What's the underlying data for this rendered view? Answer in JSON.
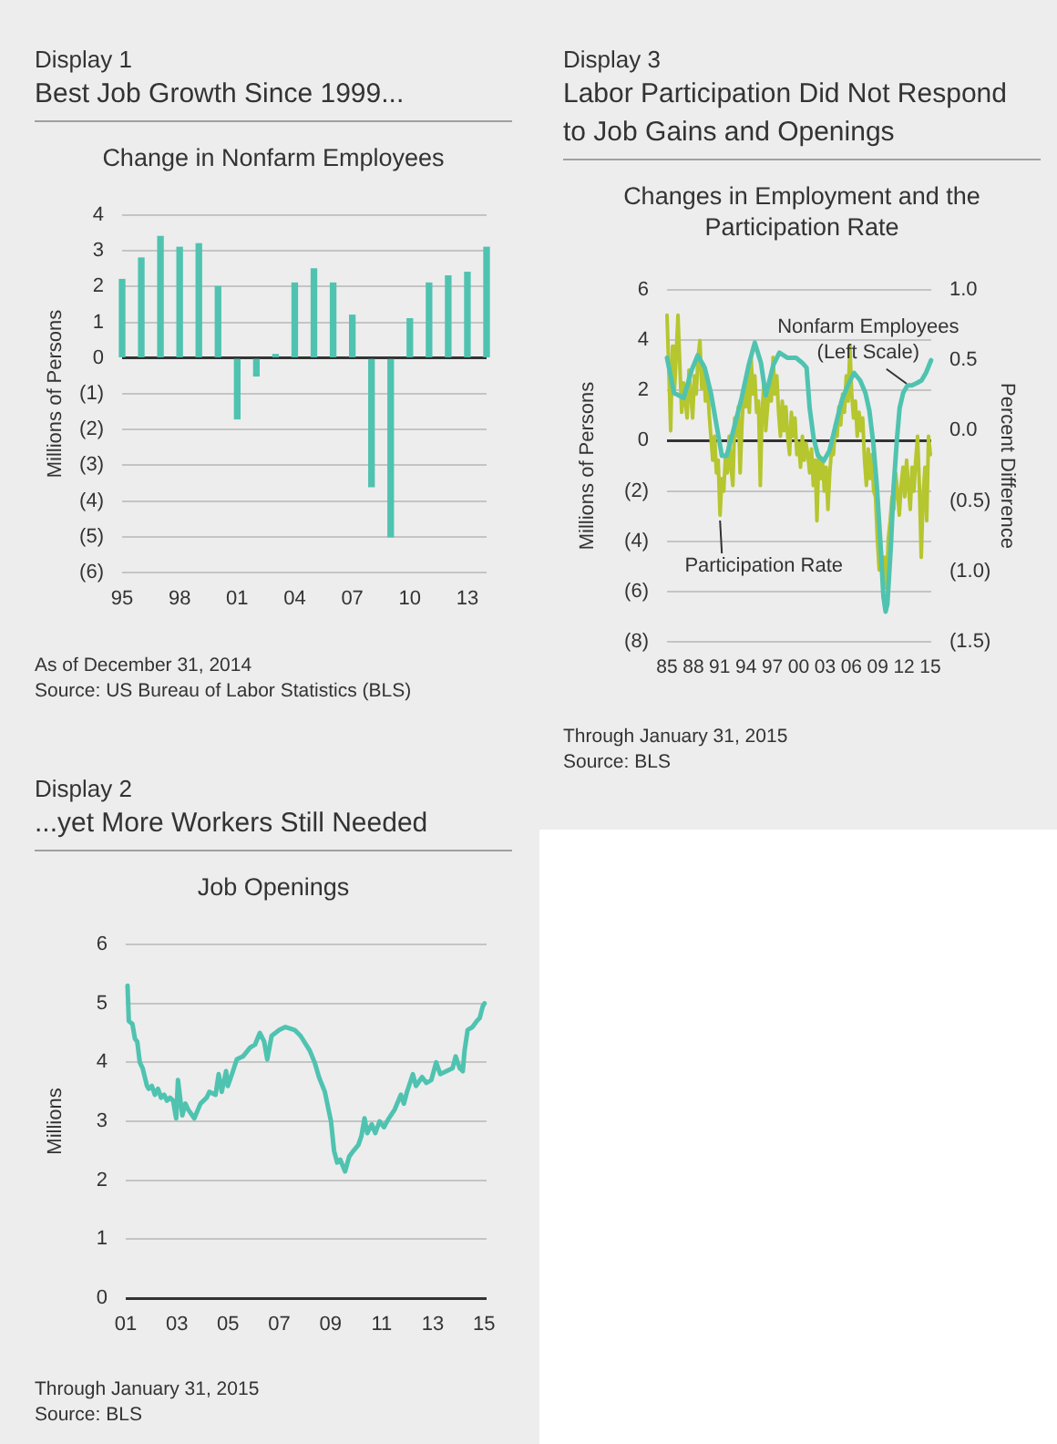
{
  "chart_data": [
    {
      "type": "bar",
      "title": "Best Job Growth Since 1999...",
      "subtitle": "Change in Nonfarm Employees",
      "ylabel": "Millions of Persons",
      "annotations": [
        "Display 1",
        "As of December 31, 2014",
        "Source: US Bureau of Labor Statistics (BLS)"
      ],
      "categories": [
        "95",
        null,
        null,
        "98",
        null,
        null,
        "01",
        null,
        null,
        "04",
        null,
        null,
        "07",
        null,
        null,
        "10",
        null,
        null,
        "13",
        null
      ],
      "values": [
        2.2,
        2.8,
        3.4,
        3.1,
        3.2,
        2.0,
        -1.7,
        -0.5,
        0.1,
        2.1,
        2.5,
        2.1,
        1.2,
        -3.6,
        -5.0,
        1.1,
        2.1,
        2.3,
        2.4,
        3.1
      ],
      "color": "#4fc3b0",
      "ylim": [
        -6,
        4
      ],
      "yticks": [
        {
          "value": -6,
          "label": "(6)"
        },
        {
          "value": -5,
          "label": "(5)"
        },
        {
          "value": -4,
          "label": "(4)"
        },
        {
          "value": -3,
          "label": "(3)"
        },
        {
          "value": -2,
          "label": "(2)"
        },
        {
          "value": -1,
          "label": "(1)"
        },
        0,
        1,
        2,
        3,
        4
      ],
      "grid": "y"
    },
    {
      "type": "line",
      "title": "Labor Participation Did Not Respond to Job Gains and Openings",
      "subtitle": "Changes in Employment and the Participation Rate",
      "ylabel": "Millions of Persons",
      "y2label": "Percent Difference",
      "annotations": [
        "Display 3",
        "Through January 31, 2015",
        "Source: BLS"
      ],
      "series": [
        {
          "name": "Nonfarm Employees (Left Scale)",
          "color": "#4fc3b0",
          "x": [
            1985,
            1985.8,
            1986.9,
            1987.8,
            1988.5,
            1989.3,
            1990,
            1990.7,
            1991.25,
            1991.8,
            1992.4,
            1993.5,
            1994.3,
            1995,
            1995.7,
            1996.25,
            1997.1,
            1997.8,
            1998.7,
            1999.7,
            2000.4,
            2000.9,
            2001.25,
            2001.7,
            2002.2,
            2002.85,
            2003.5,
            2004.2,
            2004.9,
            2005.6,
            2006.3,
            2007,
            2007.6,
            2008.05,
            2008.5,
            2008.9,
            2009.3,
            2009.65,
            2009.9,
            2010.1,
            2010.5,
            2010.8,
            2011.2,
            2011.5,
            2011.9,
            2012.4,
            2012.9,
            2013.5,
            2014,
            2014.5,
            2015.08
          ],
          "values": [
            3.3,
            1.9,
            1.7,
            2.8,
            3.4,
            2.9,
            1.9,
            0.5,
            -0.6,
            -0.6,
            0.2,
            1.7,
            3.0,
            3.9,
            3.1,
            1.8,
            3.0,
            3.5,
            3.3,
            3.3,
            3.1,
            2.9,
            1.3,
            0.1,
            -0.6,
            -0.8,
            -0.4,
            0.6,
            1.6,
            2.2,
            2.7,
            2.4,
            1.9,
            1.2,
            -0.1,
            -1.8,
            -4.0,
            -6.2,
            -6.8,
            -6.5,
            -4.2,
            -1.9,
            0.1,
            1.3,
            1.9,
            2.2,
            2.2,
            2.3,
            2.4,
            2.7,
            3.2
          ]
        },
        {
          "name": "Participation Rate",
          "color": "#b5c62f",
          "axis": "y2",
          "x": [
            1985,
            1985.21,
            1985.42,
            1985.63,
            1985.83,
            1986.04,
            1986.25,
            1986.46,
            1986.67,
            1986.88,
            1987.08,
            1987.29,
            1987.5,
            1987.71,
            1987.92,
            1988.13,
            1988.33,
            1988.54,
            1988.75,
            1988.96,
            1989.17,
            1989.38,
            1989.58,
            1989.79,
            1990,
            1990.21,
            1990.42,
            1990.63,
            1990.83,
            1991.04,
            1991.25,
            1991.46,
            1991.67,
            1991.88,
            1992.08,
            1992.29,
            1992.5,
            1992.71,
            1992.92,
            1993.13,
            1993.33,
            1993.54,
            1993.75,
            1993.96,
            1994.17,
            1994.38,
            1994.58,
            1994.79,
            1995,
            1995.21,
            1995.42,
            1995.63,
            1995.83,
            1996.04,
            1996.25,
            1996.46,
            1996.67,
            1996.88,
            1997.08,
            1997.29,
            1997.5,
            1997.71,
            1997.92,
            1998.13,
            1998.33,
            1998.54,
            1998.75,
            1998.96,
            1999.17,
            1999.38,
            1999.58,
            1999.79,
            2000,
            2000.21,
            2000.42,
            2000.63,
            2000.83,
            2001.04,
            2001.25,
            2001.46,
            2001.67,
            2001.88,
            2002.08,
            2002.29,
            2002.5,
            2002.71,
            2002.92,
            2003.13,
            2003.33,
            2003.54,
            2003.75,
            2003.96,
            2004.17,
            2004.38,
            2004.58,
            2004.79,
            2005,
            2005.21,
            2005.42,
            2005.63,
            2005.83,
            2006.04,
            2006.25,
            2006.46,
            2006.67,
            2006.88,
            2007.08,
            2007.29,
            2007.5,
            2007.71,
            2007.92,
            2008.13,
            2008.33,
            2008.54,
            2008.75,
            2008.96,
            2009.17,
            2009.38,
            2009.58,
            2009.79,
            2010,
            2010.21,
            2010.42,
            2010.63,
            2010.83,
            2011.04,
            2011.25,
            2011.46,
            2011.67,
            2011.88,
            2012.08,
            2012.29,
            2012.5,
            2012.71,
            2012.92,
            2013.13,
            2013.33,
            2013.54,
            2013.75,
            2013.96,
            2014.17,
            2014.38,
            2014.58,
            2014.79,
            2015
          ],
          "values": [
            0.82,
            0.43,
            0.0,
            0.6,
            0.26,
            0.52,
            0.82,
            0.47,
            0.13,
            0.34,
            0.21,
            0.09,
            0.43,
            0.26,
            0.09,
            0.39,
            0.26,
            0.52,
            0.64,
            0.3,
            0.47,
            0.21,
            0.39,
            0.13,
            -0.04,
            -0.21,
            -0.04,
            -0.3,
            -0.21,
            -0.6,
            -0.34,
            -0.43,
            -0.17,
            -0.3,
            -0.04,
            -0.26,
            -0.39,
            0.09,
            -0.04,
            0.17,
            -0.3,
            0.04,
            0.3,
            0.17,
            0.39,
            0.13,
            0.52,
            0.26,
            0.39,
            0.13,
            0.21,
            -0.39,
            0.13,
            0.34,
            0.0,
            0.17,
            0.34,
            0.21,
            0.52,
            0.26,
            0.39,
            0.13,
            -0.04,
            0.21,
            0.0,
            0.17,
            -0.04,
            -0.17,
            0.13,
            -0.04,
            0.09,
            -0.17,
            -0.09,
            -0.26,
            -0.04,
            -0.21,
            -0.09,
            -0.17,
            -0.3,
            -0.13,
            -0.39,
            -0.21,
            -0.64,
            -0.17,
            -0.34,
            -0.21,
            -0.43,
            -0.26,
            -0.56,
            -0.3,
            -0.13,
            -0.17,
            0.04,
            -0.04,
            0.17,
            0.04,
            0.26,
            0.13,
            0.39,
            0.21,
            0.6,
            0.26,
            0.09,
            0.21,
            -0.04,
            0.13,
            0.0,
            0.09,
            -0.21,
            -0.39,
            -0.13,
            -0.34,
            -0.17,
            -0.43,
            -0.47,
            -0.77,
            -0.99,
            -0.82,
            -1.07,
            -0.9,
            -1.12,
            -0.77,
            -0.64,
            -0.47,
            -0.56,
            -0.3,
            -0.43,
            -0.6,
            -0.39,
            -0.26,
            -0.47,
            -0.21,
            -0.39,
            -0.56,
            -0.26,
            -0.43,
            -0.21,
            -0.04,
            -0.39,
            -0.9,
            -0.47,
            -0.26,
            -0.64,
            -0.04,
            -0.17
          ]
        }
      ],
      "xlim": [
        1985,
        2015.1
      ],
      "xticks": [
        {
          "value": 1985,
          "label": "85"
        },
        {
          "value": 1988,
          "label": "88"
        },
        {
          "value": 1991,
          "label": "91"
        },
        {
          "value": 1994,
          "label": "94"
        },
        {
          "value": 1997,
          "label": "97"
        },
        {
          "value": 2000,
          "label": "00"
        },
        {
          "value": 2003,
          "label": "03"
        },
        {
          "value": 2006,
          "label": "06"
        },
        {
          "value": 2009,
          "label": "09"
        },
        {
          "value": 2012,
          "label": "12"
        },
        {
          "value": 2015,
          "label": "15"
        }
      ],
      "ylim": [
        -8,
        6
      ],
      "yticks": [
        {
          "value": -8,
          "label": "(8)"
        },
        {
          "value": -6,
          "label": "(6)"
        },
        {
          "value": -4,
          "label": "(4)"
        },
        {
          "value": -2,
          "label": "(2)"
        },
        0,
        2,
        4,
        6
      ],
      "y2lim": [
        -1.5,
        1
      ],
      "y2ticks": [
        {
          "value": -1.5,
          "label": "(1.5)"
        },
        {
          "value": -1,
          "label": "(1.0)"
        },
        {
          "value": -0.5,
          "label": "(0.5)"
        },
        {
          "value": 0,
          "label": "0.0"
        },
        0.5,
        {
          "value": 1,
          "label": "1.0"
        }
      ],
      "grid": "y"
    },
    {
      "type": "line",
      "title": "...yet More Workers Still Needed",
      "subtitle": "Job Openings",
      "ylabel": "Millions",
      "annotations": [
        "Display 2",
        "Through January 31, 2015",
        "Source: BLS"
      ],
      "color": "#4fc3b0",
      "x": [
        2001.07,
        2001.12,
        2001.26,
        2001.36,
        2001.45,
        2001.55,
        2001.66,
        2001.83,
        2001.9,
        2002.02,
        2002.14,
        2002.26,
        2002.38,
        2002.5,
        2002.61,
        2002.73,
        2002.85,
        2002.97,
        2003.04,
        2003.21,
        2003.33,
        2003.44,
        2003.68,
        2003.92,
        2004.16,
        2004.27,
        2004.51,
        2004.63,
        2004.75,
        2004.92,
        2004.99,
        2005.15,
        2005.34,
        2005.58,
        2005.86,
        2006.05,
        2006.24,
        2006.41,
        2006.53,
        2006.7,
        2007,
        2007.24,
        2007.6,
        2007.83,
        2008.19,
        2008.38,
        2008.55,
        2008.78,
        2009.02,
        2009.14,
        2009.26,
        2009.38,
        2009.57,
        2009.73,
        2009.9,
        2010.09,
        2010.21,
        2010.33,
        2010.44,
        2010.61,
        2010.75,
        2010.92,
        2011.09,
        2011.28,
        2011.51,
        2011.75,
        2011.87,
        2011.99,
        2012.22,
        2012.34,
        2012.58,
        2012.75,
        2012.94,
        2013.13,
        2013.29,
        2013.53,
        2013.77,
        2013.89,
        2014.05,
        2014.17,
        2014.24,
        2014.36,
        2014.55,
        2014.72,
        2014.83,
        2014.95,
        2015.02
      ],
      "values": [
        5.3,
        4.7,
        4.65,
        4.4,
        4.35,
        4.0,
        3.9,
        3.6,
        3.55,
        3.6,
        3.45,
        3.55,
        3.4,
        3.45,
        3.35,
        3.4,
        3.35,
        3.05,
        3.7,
        3.1,
        3.3,
        3.2,
        3.05,
        3.3,
        3.4,
        3.5,
        3.45,
        3.8,
        3.5,
        3.85,
        3.6,
        3.8,
        4.05,
        4.1,
        4.25,
        4.3,
        4.5,
        4.35,
        4.05,
        4.45,
        4.55,
        4.6,
        4.55,
        4.45,
        4.2,
        4.0,
        3.75,
        3.5,
        3.0,
        2.5,
        2.3,
        2.35,
        2.15,
        2.4,
        2.5,
        2.6,
        2.75,
        3.05,
        2.8,
        2.95,
        2.8,
        3.0,
        2.9,
        3.05,
        3.2,
        3.45,
        3.3,
        3.5,
        3.8,
        3.6,
        3.75,
        3.65,
        3.7,
        4.0,
        3.8,
        3.85,
        3.9,
        4.1,
        3.9,
        3.85,
        4.2,
        4.55,
        4.6,
        4.7,
        4.75,
        4.95,
        5.0
      ],
      "xlim": [
        2001,
        2015.1
      ],
      "xticks": [
        {
          "value": 2001,
          "label": "01"
        },
        {
          "value": 2003,
          "label": "03"
        },
        {
          "value": 2005,
          "label": "05"
        },
        {
          "value": 2007,
          "label": "07"
        },
        {
          "value": 2009,
          "label": "09"
        },
        {
          "value": 2011,
          "label": "11"
        },
        {
          "value": 2013,
          "label": "13"
        },
        {
          "value": 2015,
          "label": "15"
        }
      ],
      "ylim": [
        0,
        6
      ],
      "yticks": [
        0,
        1,
        2,
        3,
        4,
        5,
        6
      ],
      "grid": "y"
    }
  ]
}
